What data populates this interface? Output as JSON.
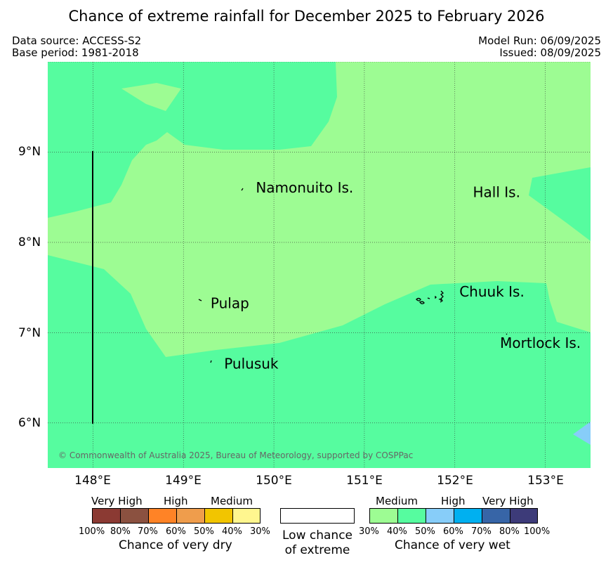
{
  "title": "Chance of extreme rainfall for December 2025 to February 2026",
  "data_source": "Data source: ACCESS-S2",
  "base_period": "Base period: 1981-2018",
  "model_run": "Model Run: 06/09/2025",
  "issued": "Issued: 08/09/2025",
  "copyright": "© Commonwealth of Australia 2025, Bureau of Meteorology, supported by COSPPac",
  "map": {
    "lon_range": [
      147.5,
      153.5
    ],
    "lat_range": [
      5.5,
      10.0
    ],
    "lat_ticks": [
      "9°N",
      "8°N",
      "7°N",
      "6°N"
    ],
    "lon_ticks": [
      "148°E",
      "149°E",
      "150°E",
      "151°E",
      "152°E",
      "153°E"
    ],
    "grid": true,
    "place_labels": [
      {
        "name": "Namonuito Is.",
        "lon": 149.8,
        "lat": 8.55
      },
      {
        "name": "Hall Is.",
        "lon": 152.2,
        "lat": 8.5
      },
      {
        "name": "Pulap",
        "lon": 149.3,
        "lat": 7.27
      },
      {
        "name": "Chuuk Is.",
        "lon": 152.05,
        "lat": 7.4
      },
      {
        "name": "Mortlock Is.",
        "lon": 152.5,
        "lat": 6.83
      },
      {
        "name": "Pulusuk",
        "lon": 149.45,
        "lat": 6.6
      }
    ],
    "colors": {
      "wet_30_40": "#9dfc93",
      "wet_40_50": "#56fc9f",
      "wet_50_60": "#87cdf9"
    }
  },
  "legend": {
    "dry": {
      "headers": [
        "Very High",
        "High",
        "Medium"
      ],
      "ticks": [
        "100%",
        "80%",
        "70%",
        "60%",
        "50%",
        "40%",
        "30%"
      ],
      "colors": [
        "#8b3a33",
        "#8b5140",
        "#ff8326",
        "#ef9d4c",
        "#f2c500",
        "#fff68f"
      ],
      "caption": "Chance of very dry"
    },
    "low": {
      "caption_line1": "Low chance",
      "caption_line2": "of extreme"
    },
    "wet": {
      "headers": [
        "Medium",
        "High",
        "Very High"
      ],
      "ticks": [
        "30%",
        "40%",
        "50%",
        "60%",
        "70%",
        "80%",
        "100%"
      ],
      "colors": [
        "#9dfc93",
        "#56fc9f",
        "#87cdf9",
        "#00b0f0",
        "#3765a7",
        "#3d3b79"
      ],
      "caption": "Chance of very wet"
    }
  }
}
